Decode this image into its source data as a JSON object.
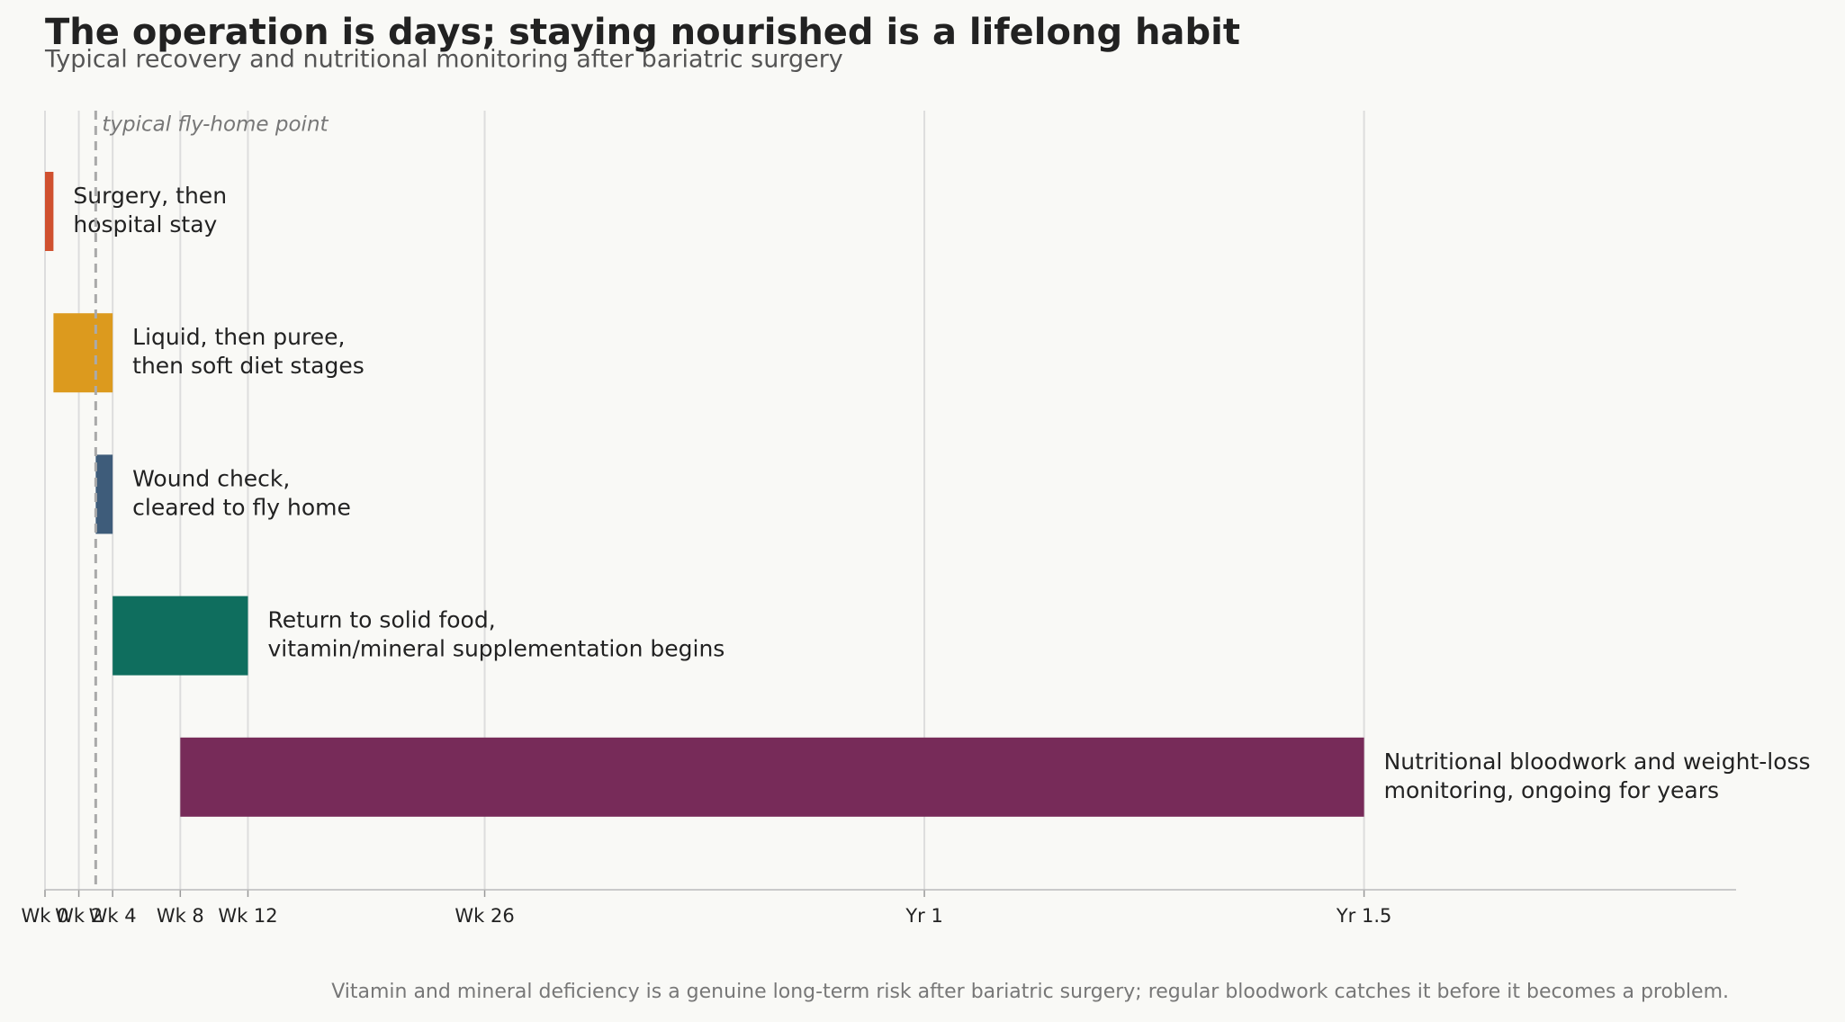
{
  "chart_data": {
    "type": "timeline",
    "title": "The operation is days; staying nourished is a lifelong habit",
    "subtitle": "Typical recovery and nutritional monitoring after bariatric surgery",
    "tasks": [
      {
        "label": [
          "Surgery, then",
          "hospital stay"
        ],
        "start": 0,
        "end": 0.5,
        "color": "#d0512f"
      },
      {
        "label": [
          "Liquid, then puree,",
          "then soft diet stages"
        ],
        "start": 0.5,
        "end": 4,
        "color": "#dc9a1e"
      },
      {
        "label": [
          "Wound check,",
          "cleared to fly home"
        ],
        "start": 3,
        "end": 4,
        "color": "#3e5c7a"
      },
      {
        "label": [
          "Return to solid food,",
          "vitamin/mineral supplementation begins"
        ],
        "start": 4,
        "end": 12,
        "color": "#0f6e5e"
      },
      {
        "label": [
          "Nutritional bloodwork and weight-loss",
          "monitoring, ongoing for years"
        ],
        "start": 8,
        "end": 78,
        "color": "#772b59"
      }
    ],
    "xlim": [
      0,
      100
    ],
    "xticks": [
      {
        "value": 0,
        "label": "Wk 0"
      },
      {
        "value": 2,
        "label": "Wk 2"
      },
      {
        "value": 4,
        "label": "Wk 4"
      },
      {
        "value": 8,
        "label": "Wk 8"
      },
      {
        "value": 12,
        "label": "Wk 12"
      },
      {
        "value": 26,
        "label": "Wk 26"
      },
      {
        "value": 52,
        "label": "Yr 1"
      },
      {
        "value": 78,
        "label": "Yr 1.5"
      }
    ],
    "grid": true,
    "reference_line": {
      "value": 3,
      "label": "typical fly-home point"
    },
    "footnote": "Vitamin and mineral deficiency is a genuine long-term risk after bariatric surgery; regular bloodwork catches it before it becomes a problem."
  }
}
